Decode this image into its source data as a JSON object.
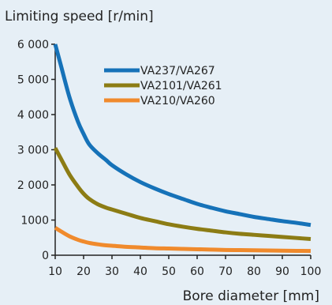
{
  "chart_data": {
    "type": "line",
    "ylabel": "Limiting speed [r/min]",
    "xlabel": "Bore diameter [mm]",
    "x": [
      10,
      12,
      15,
      18,
      20,
      22,
      25,
      28,
      30,
      35,
      40,
      45,
      50,
      55,
      60,
      65,
      70,
      75,
      80,
      85,
      90,
      95,
      100
    ],
    "xlim": [
      10,
      100
    ],
    "ylim": [
      0,
      6000
    ],
    "x_ticks": [
      "10",
      "20",
      "30",
      "40",
      "50",
      "60",
      "70",
      "80",
      "90",
      "100"
    ],
    "y_ticks": [
      "0",
      "1000",
      "2 000",
      "3 000",
      "4 000",
      "5 000",
      "6 000"
    ],
    "legend_position": "top-center",
    "series": [
      {
        "name": "VA237/VA267",
        "color": "#1672b8",
        "values": [
          6000,
          5400,
          4500,
          3800,
          3450,
          3150,
          2900,
          2700,
          2560,
          2300,
          2080,
          1900,
          1740,
          1600,
          1460,
          1350,
          1250,
          1170,
          1090,
          1030,
          970,
          920,
          860
        ]
      },
      {
        "name": "VA2101/VA261",
        "color": "#8c7c14",
        "values": [
          3050,
          2750,
          2300,
          1950,
          1750,
          1600,
          1450,
          1350,
          1300,
          1180,
          1060,
          970,
          880,
          810,
          750,
          700,
          650,
          610,
          580,
          550,
          520,
          490,
          460
        ]
      },
      {
        "name": "VA210/VA260",
        "color": "#f08a2c",
        "values": [
          780,
          680,
          540,
          440,
          390,
          350,
          310,
          280,
          270,
          240,
          220,
          200,
          190,
          180,
          170,
          160,
          150,
          145,
          140,
          135,
          130,
          125,
          120
        ]
      }
    ]
  }
}
